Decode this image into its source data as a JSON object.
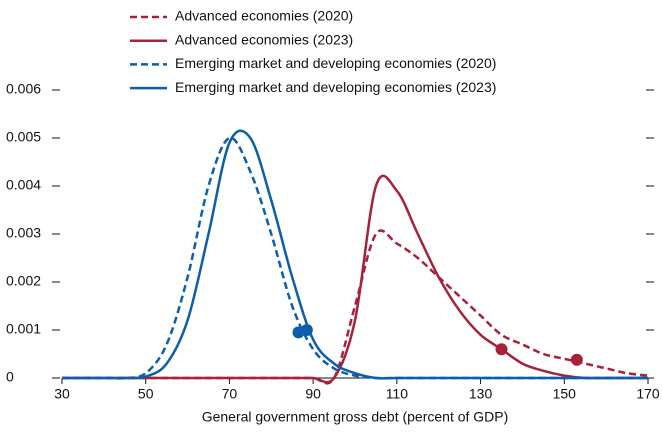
{
  "chart_data": {
    "type": "line",
    "xlabel": "General government gross debt (percent of GDP)",
    "x": [
      30,
      35,
      40,
      45,
      50,
      55,
      60,
      65,
      70,
      75,
      80,
      85,
      90,
      95,
      100,
      105,
      110,
      115,
      120,
      125,
      130,
      135,
      140,
      145,
      150,
      155,
      160,
      165,
      170
    ],
    "xlim": [
      30,
      170
    ],
    "xticks": [
      30,
      50,
      70,
      90,
      110,
      130,
      150,
      170
    ],
    "ylim": [
      0,
      0.006
    ],
    "yticks": [
      0,
      0.001,
      0.002,
      0.003,
      0.004,
      0.005,
      0.006
    ],
    "series": [
      {
        "name": "Advanced economies (2020)",
        "color": "#a6213a",
        "dashed": true,
        "values": [
          0,
          0,
          0,
          0,
          0,
          0,
          0,
          0,
          0,
          0,
          0,
          0,
          0,
          0,
          0.0015,
          0.003,
          0.0028,
          0.0025,
          0.0021,
          0.0017,
          0.0013,
          0.0009,
          0.0007,
          0.0005,
          0.0004,
          0.0003,
          0.0002,
          0.0001,
          5e-05
        ],
        "marker": {
          "x": 153,
          "y": 0.00038
        }
      },
      {
        "name": "Advanced economies (2023)",
        "color": "#a6213a",
        "dashed": false,
        "values": [
          0,
          0,
          0,
          0,
          0,
          0,
          0,
          0,
          0,
          0,
          0,
          0,
          0,
          0,
          0.0012,
          0.004,
          0.0039,
          0.003,
          0.0021,
          0.0014,
          0.0009,
          0.0006,
          0.0003,
          0.00015,
          5e-05,
          0,
          0,
          0,
          0
        ],
        "marker": {
          "x": 135,
          "y": 0.0006
        }
      },
      {
        "name": "Emerging market and developing economies (2020)",
        "color": "#0d5ea8",
        "dashed": true,
        "values": [
          0,
          0,
          0,
          0,
          0.0001,
          0.0007,
          0.0021,
          0.004,
          0.005,
          0.0043,
          0.003,
          0.0015,
          0.0006,
          0.0002,
          5e-05,
          0,
          0,
          0,
          0,
          0,
          0,
          0,
          0,
          0,
          0,
          0,
          0,
          0,
          0
        ],
        "marker": {
          "x": 86.5,
          "y": 0.00095
        }
      },
      {
        "name": "Emerging market and developing economies (2023)",
        "color": "#0d5ea8",
        "dashed": false,
        "values": [
          0,
          0,
          0,
          0,
          3e-05,
          0.0003,
          0.0012,
          0.003,
          0.0049,
          0.005,
          0.0037,
          0.0021,
          0.0008,
          0.0003,
          0.0001,
          0,
          0,
          0,
          0,
          0,
          0,
          0,
          0,
          0,
          0,
          0,
          0,
          0,
          0
        ],
        "marker": {
          "x": 88.5,
          "y": 0.001
        }
      }
    ]
  }
}
